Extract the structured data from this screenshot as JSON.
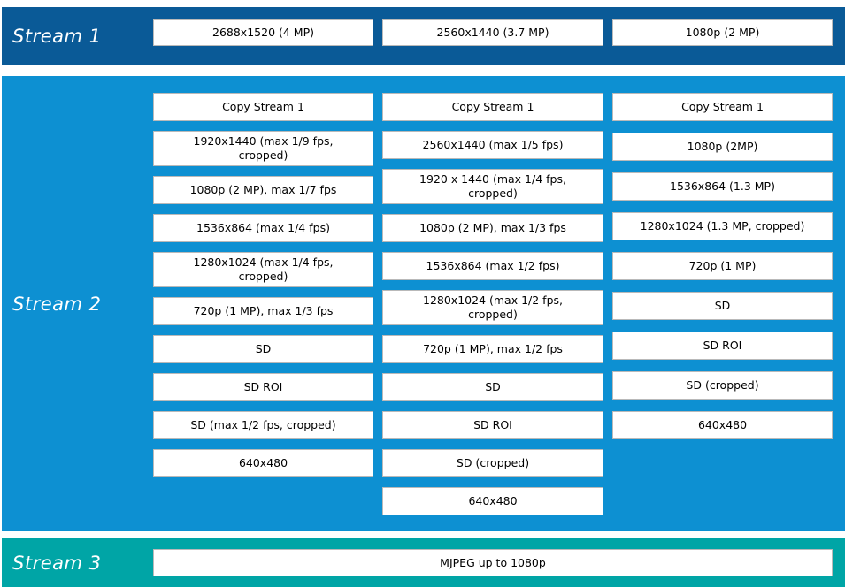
{
  "colors": {
    "stream1_bg": "#0a5a97",
    "stream2_bg": "#0d90d2",
    "stream3_bg": "#00a5a6",
    "box_bg": "#ffffff",
    "box_border": "#b9b9b9",
    "box_text": "#000000",
    "label_text": "#ffffff"
  },
  "stream1": {
    "label": "Stream 1",
    "boxes": [
      "2688x1520 (4 MP)",
      "2560x1440 (3.7 MP)",
      "1080p (2 MP)"
    ]
  },
  "stream2": {
    "label": "Stream 2",
    "columns": [
      [
        "Copy Stream 1",
        "1920x1440 (max 1/9 fps,\ncropped)",
        "1080p (2 MP), max 1/7 fps",
        "1536x864 (max 1/4 fps)",
        "1280x1024 (max 1/4 fps,\ncropped)",
        "720p (1 MP), max 1/3 fps",
        "SD",
        "SD ROI",
        "SD (max 1/2 fps, cropped)",
        "640x480"
      ],
      [
        "Copy Stream 1",
        "2560x1440 (max 1/5 fps)",
        "1920 x 1440 (max 1/4 fps,\ncropped)",
        "1080p (2 MP), max 1/3 fps",
        "1536x864 (max 1/2 fps)",
        "1280x1024 (max 1/2 fps,\ncropped)",
        "720p (1 MP), max 1/2 fps",
        "SD",
        "SD ROI",
        "SD (cropped)",
        "640x480"
      ],
      [
        "Copy Stream 1",
        "1080p (2MP)",
        "1536x864 (1.3 MP)",
        "1280x1024 (1.3 MP, cropped)",
        "720p (1 MP)",
        "SD",
        "SD ROI",
        "SD (cropped)",
        "640x480"
      ]
    ]
  },
  "stream3": {
    "label": "Stream 3",
    "boxes": [
      "MJPEG up to 1080p"
    ]
  }
}
